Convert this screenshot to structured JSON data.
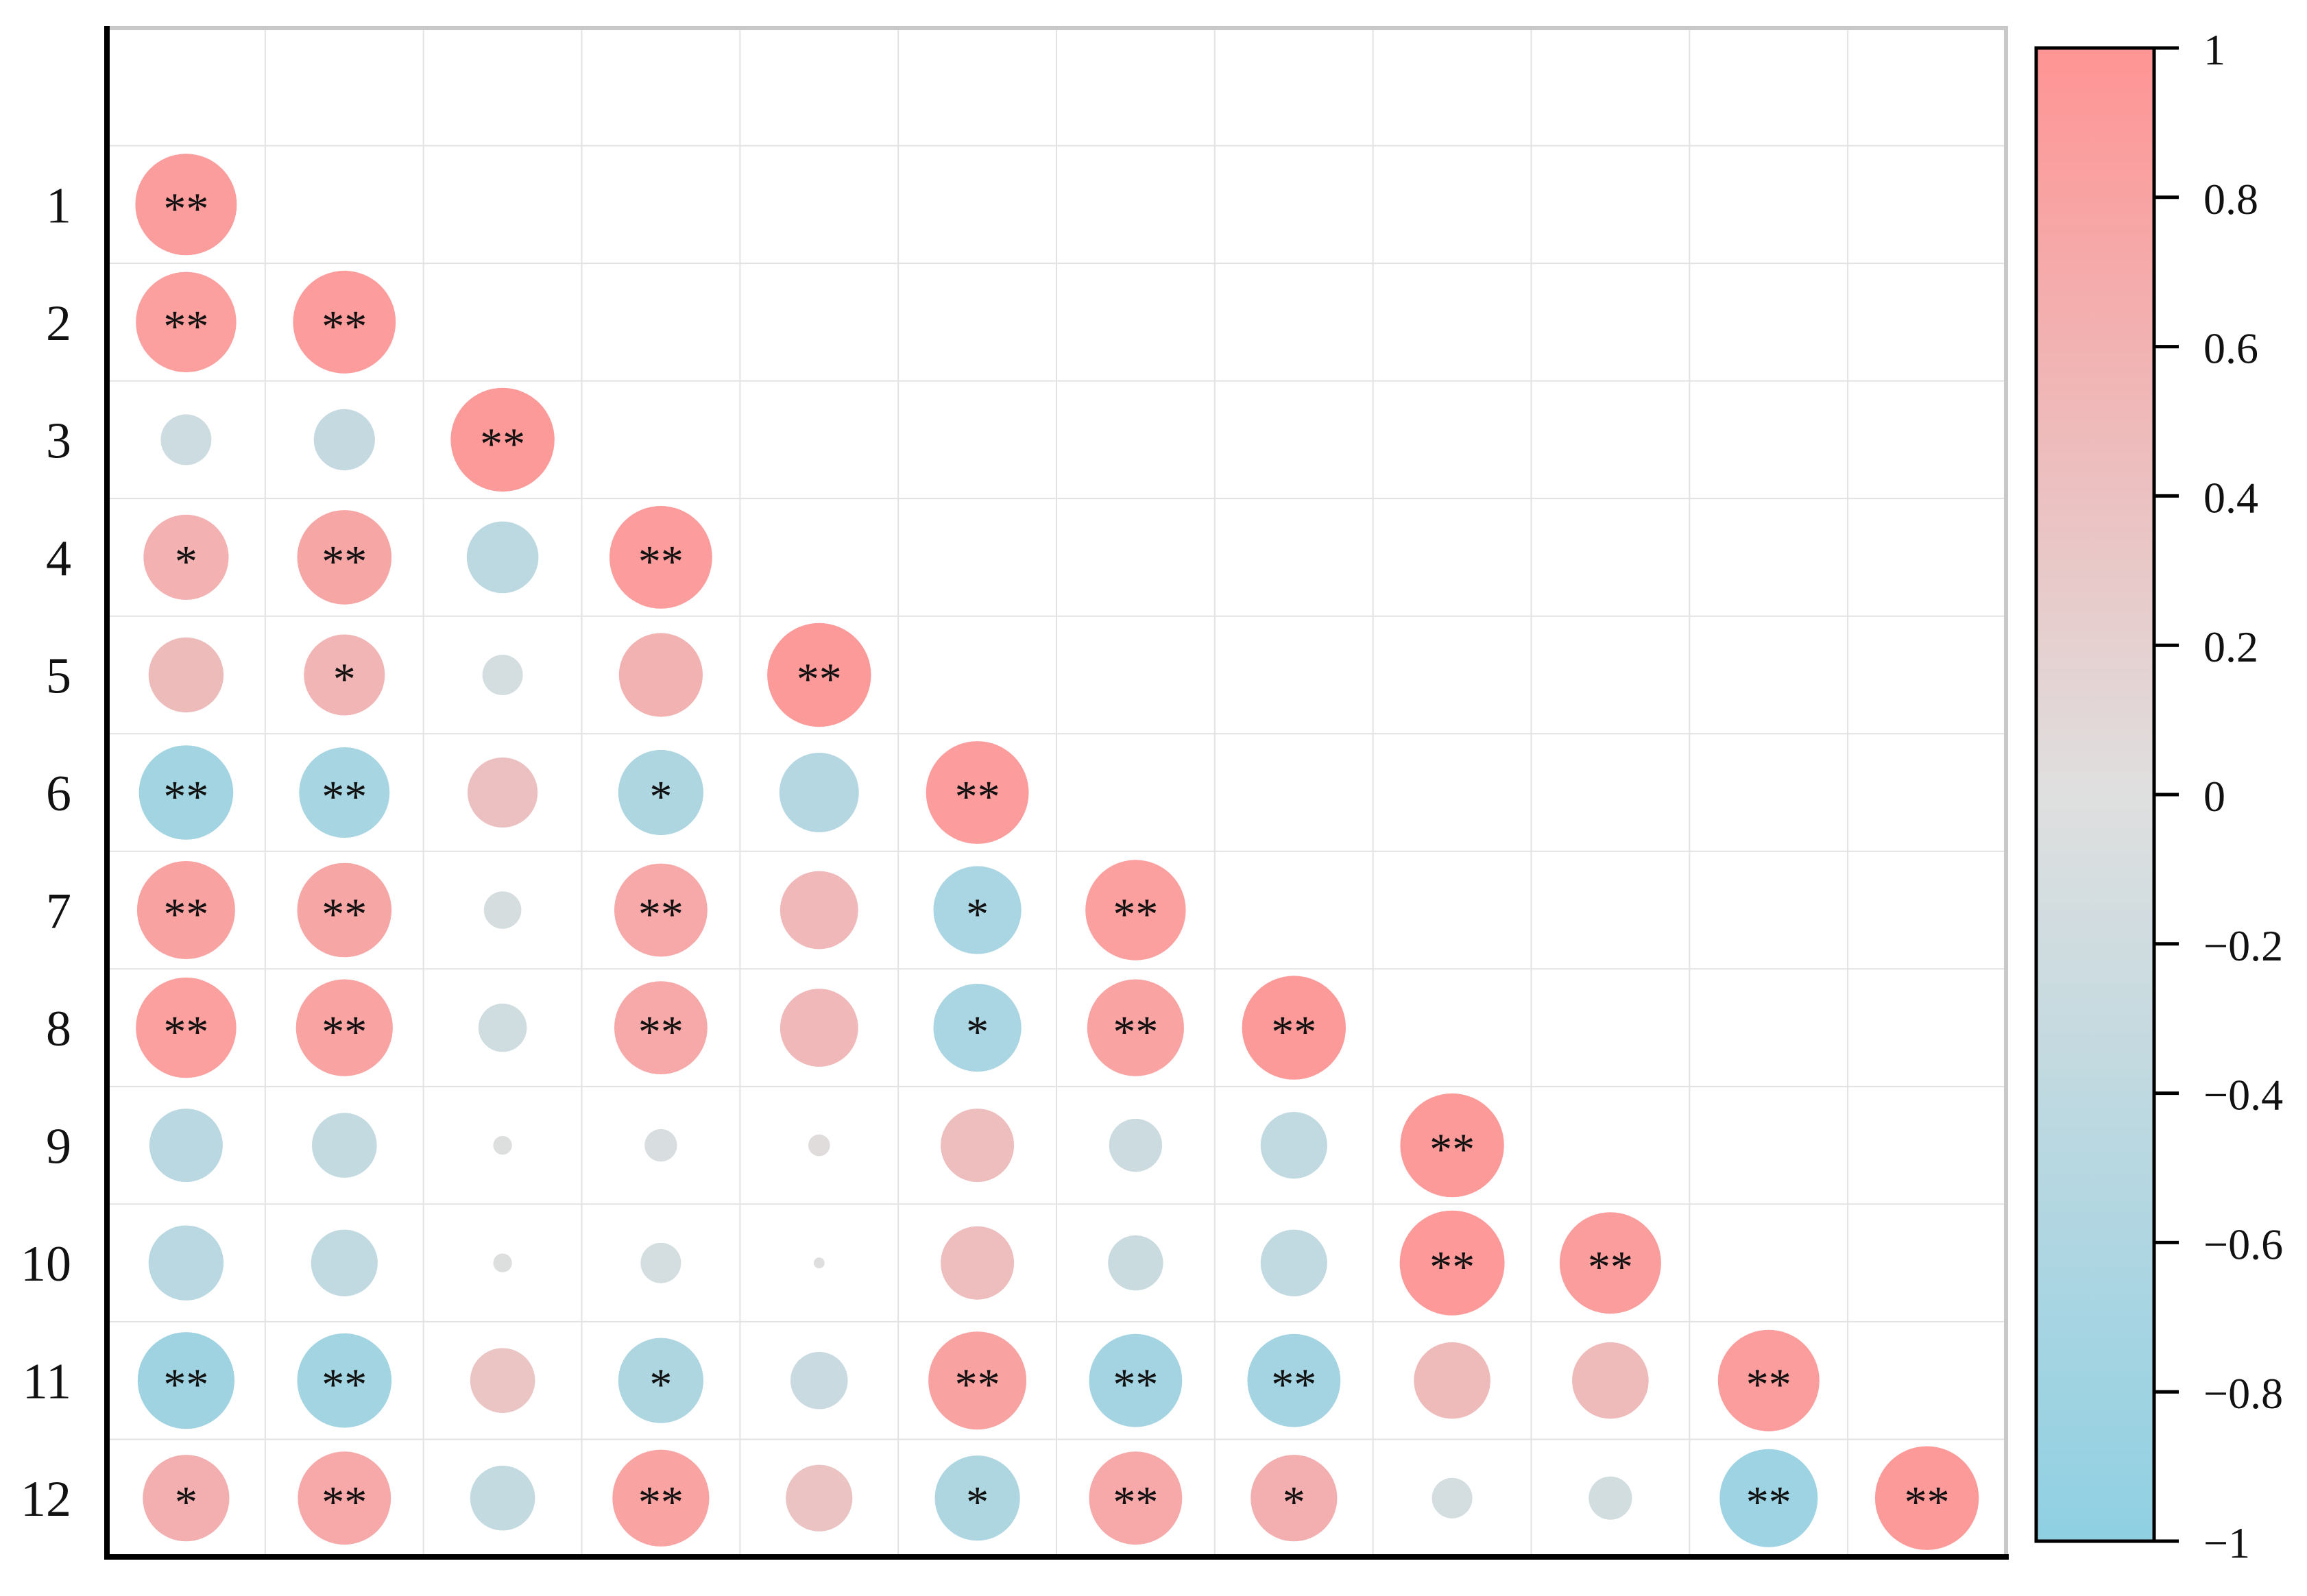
{
  "chart_data": {
    "type": "heatmap",
    "subtype": "correlation-circle-lower-triangle",
    "variables": [
      "1",
      "2",
      "3",
      "4",
      "5",
      "6",
      "7",
      "8",
      "9",
      "10",
      "11",
      "12"
    ],
    "y_tick_labels": [
      "1",
      "2",
      "3",
      "4",
      "5",
      "6",
      "7",
      "8",
      "9",
      "10",
      "11",
      "12"
    ],
    "x_tick_labels": [],
    "cells": [
      {
        "row": "1",
        "col": 1,
        "value": 0.88,
        "sig": "**"
      },
      {
        "row": "2",
        "col": 1,
        "value": 0.86,
        "sig": "**"
      },
      {
        "row": "2",
        "col": 2,
        "value": 0.9,
        "sig": "**"
      },
      {
        "row": "3",
        "col": 1,
        "value": -0.22,
        "sig": ""
      },
      {
        "row": "3",
        "col": 2,
        "value": -0.32,
        "sig": ""
      },
      {
        "row": "3",
        "col": 3,
        "value": 0.92,
        "sig": "**"
      },
      {
        "row": "4",
        "col": 1,
        "value": 0.62,
        "sig": "*"
      },
      {
        "row": "4",
        "col": 2,
        "value": 0.76,
        "sig": "**"
      },
      {
        "row": "4",
        "col": 3,
        "value": -0.44,
        "sig": ""
      },
      {
        "row": "4",
        "col": 4,
        "value": 0.9,
        "sig": "**"
      },
      {
        "row": "5",
        "col": 1,
        "value": 0.48,
        "sig": ""
      },
      {
        "row": "5",
        "col": 2,
        "value": 0.56,
        "sig": "*"
      },
      {
        "row": "5",
        "col": 3,
        "value": -0.14,
        "sig": ""
      },
      {
        "row": "5",
        "col": 4,
        "value": 0.6,
        "sig": ""
      },
      {
        "row": "5",
        "col": 5,
        "value": 0.92,
        "sig": "**"
      },
      {
        "row": "6",
        "col": 1,
        "value": -0.76,
        "sig": "**"
      },
      {
        "row": "6",
        "col": 2,
        "value": -0.7,
        "sig": "**"
      },
      {
        "row": "6",
        "col": 3,
        "value": 0.42,
        "sig": ""
      },
      {
        "row": "6",
        "col": 4,
        "value": -0.62,
        "sig": "*"
      },
      {
        "row": "6",
        "col": 5,
        "value": -0.54,
        "sig": ""
      },
      {
        "row": "6",
        "col": 6,
        "value": 0.9,
        "sig": "**"
      },
      {
        "row": "7",
        "col": 1,
        "value": 0.82,
        "sig": "**"
      },
      {
        "row": "7",
        "col": 2,
        "value": 0.76,
        "sig": "**"
      },
      {
        "row": "7",
        "col": 3,
        "value": -0.12,
        "sig": ""
      },
      {
        "row": "7",
        "col": 4,
        "value": 0.74,
        "sig": "**"
      },
      {
        "row": "7",
        "col": 5,
        "value": 0.52,
        "sig": ""
      },
      {
        "row": "7",
        "col": 6,
        "value": -0.66,
        "sig": "*"
      },
      {
        "row": "7",
        "col": 7,
        "value": 0.86,
        "sig": "**"
      },
      {
        "row": "8",
        "col": 1,
        "value": 0.86,
        "sig": "**"
      },
      {
        "row": "8",
        "col": 2,
        "value": 0.8,
        "sig": "**"
      },
      {
        "row": "8",
        "col": 3,
        "value": -0.2,
        "sig": ""
      },
      {
        "row": "8",
        "col": 4,
        "value": 0.74,
        "sig": "**"
      },
      {
        "row": "8",
        "col": 5,
        "value": 0.52,
        "sig": ""
      },
      {
        "row": "8",
        "col": 6,
        "value": -0.66,
        "sig": "*"
      },
      {
        "row": "8",
        "col": 7,
        "value": 0.8,
        "sig": "**"
      },
      {
        "row": "8",
        "col": 8,
        "value": 0.92,
        "sig": "**"
      },
      {
        "row": "9",
        "col": 1,
        "value": -0.46,
        "sig": ""
      },
      {
        "row": "9",
        "col": 2,
        "value": -0.36,
        "sig": ""
      },
      {
        "row": "9",
        "col": 3,
        "value": -0.03,
        "sig": ""
      },
      {
        "row": "9",
        "col": 4,
        "value": -0.09,
        "sig": ""
      },
      {
        "row": "9",
        "col": 5,
        "value": 0.04,
        "sig": ""
      },
      {
        "row": "9",
        "col": 6,
        "value": 0.46,
        "sig": ""
      },
      {
        "row": "9",
        "col": 7,
        "value": -0.24,
        "sig": ""
      },
      {
        "row": "9",
        "col": 8,
        "value": -0.38,
        "sig": ""
      },
      {
        "row": "9",
        "col": 9,
        "value": 0.92,
        "sig": "**"
      },
      {
        "row": "10",
        "col": 1,
        "value": -0.48,
        "sig": ""
      },
      {
        "row": "10",
        "col": 2,
        "value": -0.38,
        "sig": ""
      },
      {
        "row": "10",
        "col": 3,
        "value": -0.03,
        "sig": ""
      },
      {
        "row": "10",
        "col": 4,
        "value": -0.14,
        "sig": ""
      },
      {
        "row": "10",
        "col": 5,
        "value": 0.01,
        "sig": ""
      },
      {
        "row": "10",
        "col": 6,
        "value": 0.46,
        "sig": ""
      },
      {
        "row": "10",
        "col": 7,
        "value": -0.26,
        "sig": ""
      },
      {
        "row": "10",
        "col": 8,
        "value": -0.38,
        "sig": ""
      },
      {
        "row": "10",
        "col": 9,
        "value": 0.94,
        "sig": "**"
      },
      {
        "row": "10",
        "col": 10,
        "value": 0.88,
        "sig": "**"
      },
      {
        "row": "11",
        "col": 1,
        "value": -0.8,
        "sig": "**"
      },
      {
        "row": "11",
        "col": 2,
        "value": -0.76,
        "sig": "**"
      },
      {
        "row": "11",
        "col": 3,
        "value": 0.36,
        "sig": ""
      },
      {
        "row": "11",
        "col": 4,
        "value": -0.62,
        "sig": "*"
      },
      {
        "row": "11",
        "col": 5,
        "value": -0.28,
        "sig": ""
      },
      {
        "row": "11",
        "col": 6,
        "value": 0.82,
        "sig": "**"
      },
      {
        "row": "11",
        "col": 7,
        "value": -0.74,
        "sig": "**"
      },
      {
        "row": "11",
        "col": 8,
        "value": -0.74,
        "sig": "**"
      },
      {
        "row": "11",
        "col": 9,
        "value": 0.5,
        "sig": ""
      },
      {
        "row": "11",
        "col": 10,
        "value": 0.5,
        "sig": ""
      },
      {
        "row": "11",
        "col": 11,
        "value": 0.88,
        "sig": "**"
      },
      {
        "row": "12",
        "col": 1,
        "value": 0.64,
        "sig": "*"
      },
      {
        "row": "12",
        "col": 2,
        "value": 0.74,
        "sig": "**"
      },
      {
        "row": "12",
        "col": 3,
        "value": -0.36,
        "sig": ""
      },
      {
        "row": "12",
        "col": 4,
        "value": 0.8,
        "sig": "**"
      },
      {
        "row": "12",
        "col": 5,
        "value": 0.38,
        "sig": ""
      },
      {
        "row": "12",
        "col": 6,
        "value": -0.62,
        "sig": "*"
      },
      {
        "row": "12",
        "col": 7,
        "value": 0.74,
        "sig": "**"
      },
      {
        "row": "12",
        "col": 8,
        "value": 0.64,
        "sig": "*"
      },
      {
        "row": "12",
        "col": 9,
        "value": -0.14,
        "sig": ""
      },
      {
        "row": "12",
        "col": 10,
        "value": -0.16,
        "sig": ""
      },
      {
        "row": "12",
        "col": 11,
        "value": -0.82,
        "sig": "**"
      },
      {
        "row": "12",
        "col": 12,
        "value": 0.92,
        "sig": "**"
      }
    ],
    "colorbar": {
      "range": [
        -1,
        1
      ],
      "ticks": [
        1,
        0.8,
        0.6,
        0.4,
        0.2,
        0,
        -0.2,
        -0.4,
        -0.6,
        -0.8,
        -1
      ],
      "tick_labels": [
        "1",
        "0.8",
        "0.6",
        "0.4",
        "0.2",
        "0",
        "−0.2",
        "−0.4",
        "−0.6",
        "−0.8",
        "−1"
      ],
      "color_min": "#8fd0e3",
      "color_mid": "#dfdfdf",
      "color_max": "#ff9494"
    },
    "grid": true,
    "legend": "colorbar-right",
    "title": "",
    "xlabel": "",
    "ylabel": ""
  }
}
